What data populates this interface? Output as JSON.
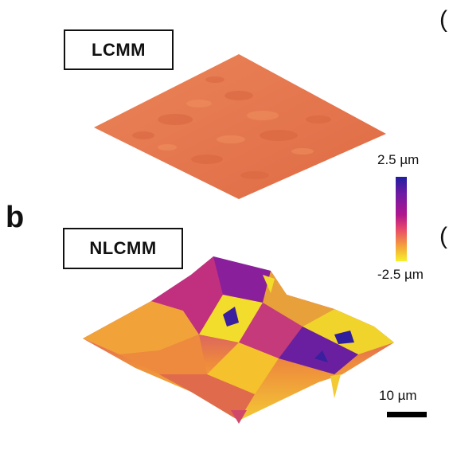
{
  "panels": {
    "b_letter": "b",
    "edge_glyph_top": "(",
    "edge_glyph_bottom": "("
  },
  "samples": {
    "top_label": "LCMM",
    "bottom_label": "NLCMM"
  },
  "colorbar": {
    "max_label": "2.5 µm",
    "min_label": "-2.5 µm",
    "colors": [
      "#1f1ea0",
      "#6f1aa3",
      "#b0168e",
      "#e8486a",
      "#f4a13a",
      "#f6f12a"
    ]
  },
  "scale_bar": {
    "label": "10 µm"
  },
  "surface_colors": {
    "flat": "#e5774f",
    "flat_shade": "#d9663f",
    "rough_low": "#f3dd2c",
    "rough_mid": "#ee8a3d",
    "rough_high": "#9a1c9b",
    "rough_peak": "#3a1f9e"
  }
}
